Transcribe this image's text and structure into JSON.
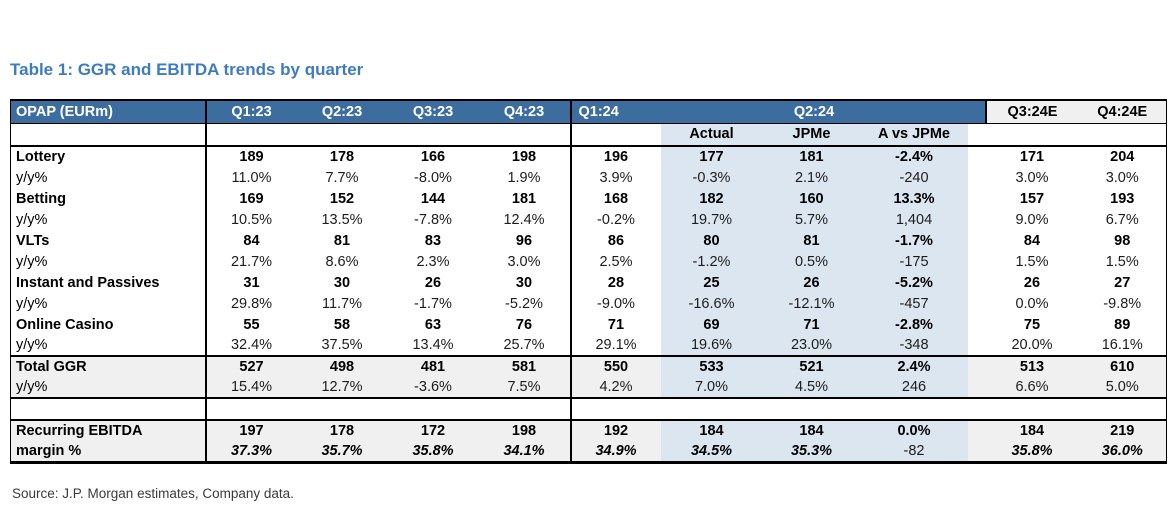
{
  "title": "Table 1: GGR and EBITDA trends by quarter",
  "source": "Source: J.P. Morgan estimates, Company data.",
  "colors": {
    "header_blue": "#3c6d9e",
    "shade_blue": "#dce6f1",
    "summary_gray": "#f0f0f0",
    "title_blue": "#3e7cc0"
  },
  "table": {
    "corner_label": "OPAP (EURm)",
    "group_headers": [
      "Q1:23",
      "Q2:23",
      "Q3:23",
      "Q4:23",
      "Q1:24",
      "Q2:24",
      "Q3:24E",
      "Q4:24E"
    ],
    "sub_headers": [
      "Actual",
      "JPMe",
      "A vs JPMe"
    ],
    "rows": [
      {
        "label": "Lottery",
        "kind": "metric",
        "values": [
          "189",
          "178",
          "166",
          "198",
          "196",
          "177",
          "181",
          "-2.4%",
          "171",
          "204"
        ]
      },
      {
        "label": "y/y%",
        "kind": "yoy",
        "values": [
          "11.0%",
          "7.7%",
          "-8.0%",
          "1.9%",
          "3.9%",
          "-0.3%",
          "2.1%",
          "-240",
          "3.0%",
          "3.0%"
        ]
      },
      {
        "label": "Betting",
        "kind": "metric",
        "values": [
          "169",
          "152",
          "144",
          "181",
          "168",
          "182",
          "160",
          "13.3%",
          "157",
          "193"
        ]
      },
      {
        "label": "y/y%",
        "kind": "yoy",
        "values": [
          "10.5%",
          "13.5%",
          "-7.8%",
          "12.4%",
          "-0.2%",
          "19.7%",
          "5.7%",
          "1,404",
          "9.0%",
          "6.7%"
        ]
      },
      {
        "label": "VLTs",
        "kind": "metric",
        "values": [
          "84",
          "81",
          "83",
          "96",
          "86",
          "80",
          "81",
          "-1.7%",
          "84",
          "98"
        ]
      },
      {
        "label": "y/y%",
        "kind": "yoy",
        "values": [
          "21.7%",
          "8.6%",
          "2.3%",
          "3.0%",
          "2.5%",
          "-1.2%",
          "0.5%",
          "-175",
          "1.5%",
          "1.5%"
        ]
      },
      {
        "label": "Instant and Passives",
        "kind": "metric",
        "values": [
          "31",
          "30",
          "26",
          "30",
          "28",
          "25",
          "26",
          "-5.2%",
          "26",
          "27"
        ]
      },
      {
        "label": "y/y%",
        "kind": "yoy",
        "values": [
          "29.8%",
          "11.7%",
          "-1.7%",
          "-5.2%",
          "-9.0%",
          "-16.6%",
          "-12.1%",
          "-457",
          "0.0%",
          "-9.8%"
        ]
      },
      {
        "label": "Online Casino",
        "kind": "metric",
        "values": [
          "55",
          "58",
          "63",
          "76",
          "71",
          "69",
          "71",
          "-2.8%",
          "75",
          "89"
        ]
      },
      {
        "label": "y/y%",
        "kind": "yoy",
        "values": [
          "32.4%",
          "37.5%",
          "13.4%",
          "25.7%",
          "29.1%",
          "19.6%",
          "23.0%",
          "-348",
          "20.0%",
          "16.1%"
        ]
      },
      {
        "label": "Total GGR",
        "kind": "metric",
        "section": "total",
        "values": [
          "527",
          "498",
          "481",
          "581",
          "550",
          "533",
          "521",
          "2.4%",
          "513",
          "610"
        ]
      },
      {
        "label": "y/y%",
        "kind": "yoy",
        "section": "total",
        "values": [
          "15.4%",
          "12.7%",
          "-3.6%",
          "7.5%",
          "4.2%",
          "7.0%",
          "4.5%",
          "246",
          "6.6%",
          "5.0%"
        ]
      },
      {
        "label": "",
        "kind": "spacer",
        "values": [
          "",
          "",
          "",
          "",
          "",
          "",
          "",
          "",
          "",
          ""
        ]
      },
      {
        "label": "Recurring EBITDA",
        "kind": "metric",
        "section": "ebitda",
        "values": [
          "197",
          "178",
          "172",
          "198",
          "192",
          "184",
          "184",
          "0.0%",
          "184",
          "219"
        ]
      },
      {
        "label": "margin %",
        "kind": "margin",
        "section": "ebitda",
        "values": [
          "37.3%",
          "35.7%",
          "35.8%",
          "34.1%",
          "34.9%",
          "34.5%",
          "35.3%",
          "-82",
          "35.8%",
          "36.0%"
        ]
      }
    ]
  }
}
